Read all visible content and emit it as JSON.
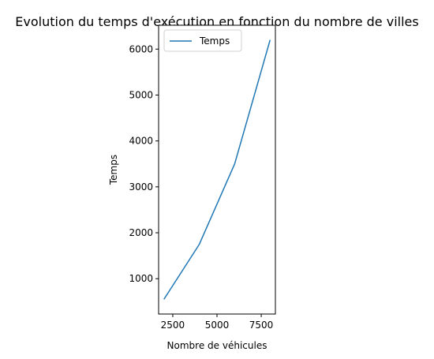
{
  "chart_data": {
    "type": "line",
    "title": "Evolution du temps d'exécution en fonction du nombre de villes",
    "xlabel": "Nombre de véhicules",
    "ylabel": "Temps",
    "xlim": [
      1700,
      8300
    ],
    "ylim": [
      230,
      6520
    ],
    "xticks": [
      2500,
      5000,
      7500
    ],
    "yticks": [
      1000,
      2000,
      3000,
      4000,
      5000,
      6000
    ],
    "grid": false,
    "legend": "top-left",
    "series": [
      {
        "name": "Temps",
        "color": "#1f77b4",
        "x": [
          2000,
          4000,
          6000,
          8000
        ],
        "y": [
          550,
          1750,
          3500,
          6200
        ]
      }
    ]
  }
}
